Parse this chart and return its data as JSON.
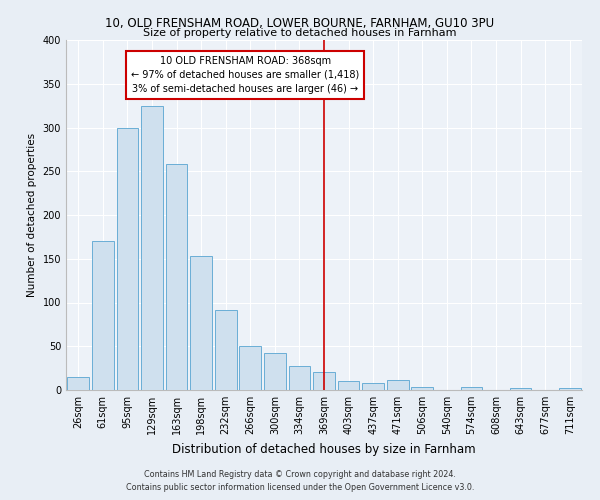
{
  "title1": "10, OLD FRENSHAM ROAD, LOWER BOURNE, FARNHAM, GU10 3PU",
  "title2": "Size of property relative to detached houses in Farnham",
  "xlabel": "Distribution of detached houses by size in Farnham",
  "ylabel": "Number of detached properties",
  "bar_labels": [
    "26sqm",
    "61sqm",
    "95sqm",
    "129sqm",
    "163sqm",
    "198sqm",
    "232sqm",
    "266sqm",
    "300sqm",
    "334sqm",
    "369sqm",
    "403sqm",
    "437sqm",
    "471sqm",
    "506sqm",
    "540sqm",
    "574sqm",
    "608sqm",
    "643sqm",
    "677sqm",
    "711sqm"
  ],
  "bar_values": [
    15,
    170,
    300,
    325,
    258,
    153,
    91,
    50,
    42,
    28,
    21,
    10,
    8,
    11,
    3,
    0,
    4,
    0,
    2,
    0,
    2
  ],
  "bar_color": "#cfe0ee",
  "bar_edge_color": "#6aaed6",
  "annotation_title": "10 OLD FRENSHAM ROAD: 368sqm",
  "annotation_line1": "← 97% of detached houses are smaller (1,418)",
  "annotation_line2": "3% of semi-detached houses are larger (46) →",
  "vline_index": 10,
  "vline_color": "#cc0000",
  "annotation_box_edge": "#cc0000",
  "ylim": [
    0,
    400
  ],
  "yticks": [
    0,
    50,
    100,
    150,
    200,
    250,
    300,
    350,
    400
  ],
  "footer1": "Contains HM Land Registry data © Crown copyright and database right 2024.",
  "footer2": "Contains public sector information licensed under the Open Government Licence v3.0.",
  "bg_color": "#e8eef5",
  "plot_bg_color": "#edf2f8"
}
